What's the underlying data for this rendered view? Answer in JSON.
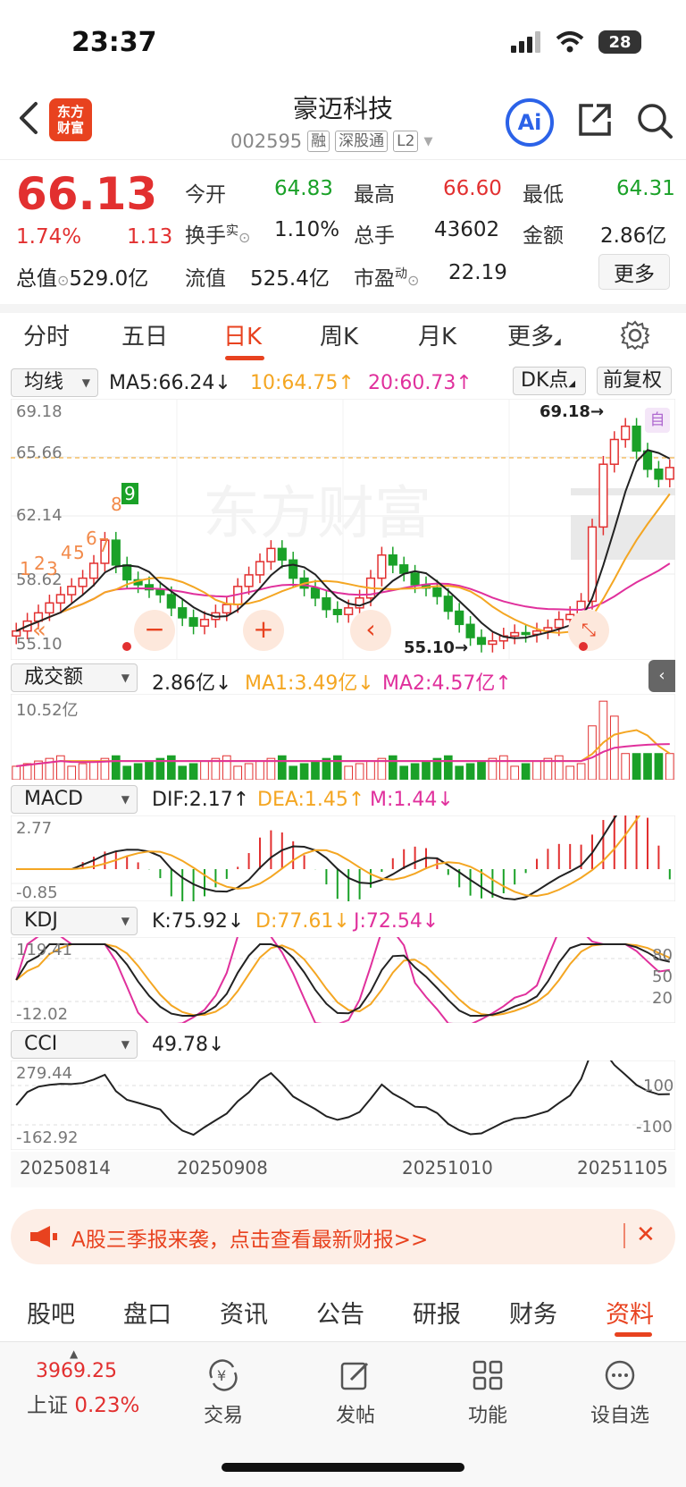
{
  "status": {
    "time": "23:37",
    "battery": "28"
  },
  "header": {
    "logo_line1": "东方",
    "logo_line2": "财富",
    "title": "豪迈科技",
    "code": "002595",
    "tags": [
      "融",
      "深股通",
      "L2"
    ],
    "ai_label": "Ai"
  },
  "quote": {
    "price": "66.13",
    "change_pct": "1.74%",
    "change_amt": "1.13",
    "total_value_label": "总值",
    "total_value": "529.0亿",
    "open_label": "今开",
    "open": "64.83",
    "high_label": "最高",
    "high": "66.60",
    "low_label": "最低",
    "low": "64.31",
    "turnover_label": "换手",
    "turnover_sup": "实",
    "turnover": "1.10%",
    "volume_label": "总手",
    "volume": "43602",
    "amount_label": "金额",
    "amount": "2.86亿",
    "float_label": "流值",
    "float_value": "525.4亿",
    "pe_label": "市盈",
    "pe_sup": "动",
    "pe": "22.19",
    "more_label": "更多"
  },
  "period_tabs": [
    "分时",
    "五日",
    "日K",
    "周K",
    "月K",
    "更多"
  ],
  "kline": {
    "indicator": "均线",
    "ma5": "MA5:66.24↓",
    "ma10": "10:64.75↑",
    "ma20": "20:60.73↑",
    "dk_label": "DK点",
    "adjust_label": "前复权",
    "self_label": "自",
    "y_top": "69.18",
    "y_mid1": "65.66",
    "y_mid2": "62.14",
    "y_mid3": "58.62",
    "y_bottom": "55.10",
    "high_marker": "69.18",
    "low_marker": "55.10",
    "nums": [
      "1",
      "2",
      "3",
      "4",
      "5",
      "6",
      "7",
      "8",
      "9"
    ]
  },
  "volume_panel": {
    "indicator": "成交额",
    "value": "2.86亿↓",
    "ma1": "MA1:3.49亿↓",
    "ma2": "MA2:4.57亿↑",
    "y_top": "10.52亿"
  },
  "macd_panel": {
    "indicator": "MACD",
    "dif": "DIF:2.17↑",
    "dea": "DEA:1.45↑",
    "m": "M:1.44↓",
    "y_top": "2.77",
    "y_bottom": "-0.85"
  },
  "kdj_panel": {
    "indicator": "KDJ",
    "k": "K:75.92↓",
    "d": "D:77.61↓",
    "j": "J:72.54↓",
    "y_top": "119.41",
    "y_bottom": "-12.02",
    "r80": "80",
    "r50": "50",
    "r20": "20"
  },
  "cci_panel": {
    "indicator": "CCI",
    "value": "49.78↓",
    "y_top": "279.44",
    "y_bottom": "-162.92",
    "r100": "100",
    "rm100": "-100"
  },
  "dates": [
    "20250814",
    "20250908",
    "20251010",
    "20251105"
  ],
  "banner": {
    "text": "A股三季报来袭，点击查看最新财报>>",
    "close": "✕"
  },
  "bottom_tabs": [
    "股吧",
    "盘口",
    "资讯",
    "公告",
    "研报",
    "财务",
    "资料"
  ],
  "toolbar": {
    "index_value": "3969.25",
    "index_name": "上证",
    "index_change": "0.23%",
    "trade": "交易",
    "post": "发帖",
    "functions": "功能",
    "watch": "设自选"
  },
  "colors": {
    "up": "#e23030",
    "down": "#1aa128",
    "accent": "#e8421f",
    "ma10": "#f4a622",
    "ma20": "#e0309c"
  }
}
